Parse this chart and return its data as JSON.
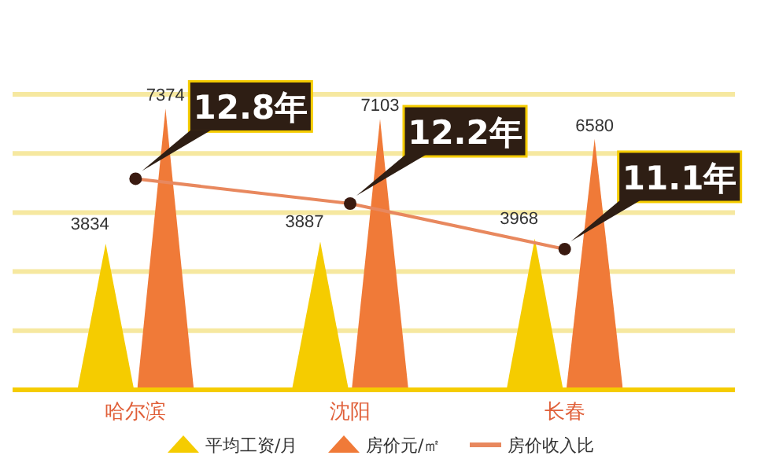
{
  "chart_data": {
    "type": "bar",
    "categories": [
      "哈尔滨",
      "沈阳",
      "长春"
    ],
    "series": [
      {
        "name": "平均工资/月",
        "color": "#f5cc00",
        "values": [
          3834,
          3887,
          3968
        ]
      },
      {
        "name": "房价元/㎡",
        "color": "#f07a38",
        "values": [
          7374,
          7103,
          6580
        ]
      },
      {
        "name": "房价收入比",
        "type": "line",
        "axis": "y2",
        "color": "#e8885e",
        "values": [
          12.8,
          12.2,
          11.1
        ],
        "value_labels": [
          "12.8年",
          "12.2年",
          "11.1年"
        ]
      }
    ],
    "data_labels": true,
    "ylim": [
      0,
      7750
    ],
    "yticks": [
      {
        "value": 1550,
        "label": null
      },
      {
        "value": 3100,
        "label": null
      },
      {
        "value": 4650,
        "label": null
      },
      {
        "value": 6200,
        "label": null
      },
      {
        "value": 7750,
        "label": null
      }
    ],
    "tick_labels": "x",
    "grid": "y",
    "marker": "circle",
    "legend": "bottom"
  }
}
